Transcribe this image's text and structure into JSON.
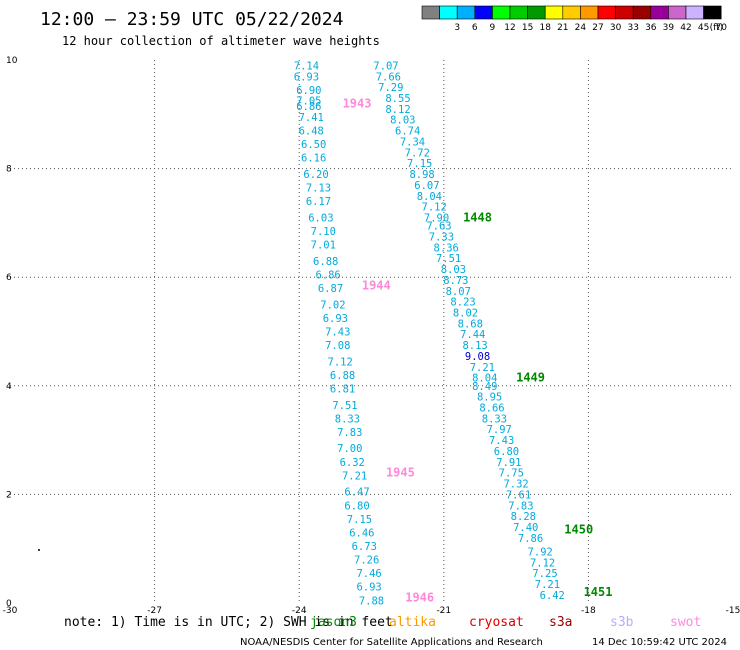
{
  "header": {
    "title": "12:00 – 23:59 UTC 05/22/2024",
    "subtitle": "12 hour collection of altimeter wave heights"
  },
  "legend": {
    "unit": "(ft)",
    "bins": [
      {
        "label": "",
        "color": "#808080"
      },
      {
        "label": "3",
        "color": "#00ffff"
      },
      {
        "label": "6",
        "color": "#00b0ff"
      },
      {
        "label": "9",
        "color": "#0000ff"
      },
      {
        "label": "12",
        "color": "#00ff00"
      },
      {
        "label": "15",
        "color": "#00cc00"
      },
      {
        "label": "18",
        "color": "#009900"
      },
      {
        "label": "21",
        "color": "#ffff00"
      },
      {
        "label": "24",
        "color": "#ffcc00"
      },
      {
        "label": "27",
        "color": "#ff9900"
      },
      {
        "label": "30",
        "color": "#ff0000"
      },
      {
        "label": "33",
        "color": "#cc0000"
      },
      {
        "label": "36",
        "color": "#990000"
      },
      {
        "label": "39",
        "color": "#990099"
      },
      {
        "label": "42",
        "color": "#cc66cc"
      },
      {
        "label": "45",
        "color": "#ccb3ff"
      },
      {
        "label": "70",
        "color": "#000000"
      }
    ]
  },
  "footer": {
    "note": "note:  1) Time is in UTC; 2) SWH is in feet",
    "credit": "NOAA/NESDIS Center for Satellite Applications and Research",
    "timestamp": "14 Dec 10:59:42 UTC 2024",
    "satellites": [
      {
        "name": "jason3",
        "color": "#008800"
      },
      {
        "name": "altika",
        "color": "#ff9900"
      },
      {
        "name": "cryosat",
        "color": "#dd0000"
      },
      {
        "name": "s3a",
        "color": "#990000"
      },
      {
        "name": "s3b",
        "color": "#bbaaff"
      },
      {
        "name": "swot",
        "color": "#ff88dd"
      }
    ]
  },
  "chart_data": {
    "type": "scatter",
    "xlim": [
      -30,
      -15
    ],
    "ylim": [
      0,
      10
    ],
    "xticks": [
      -30,
      -27,
      -24,
      -21,
      -18,
      -15
    ],
    "yticks": [
      0,
      2,
      4,
      6,
      8,
      10
    ],
    "grid": true,
    "units": "ft",
    "value_color": "#00aadd",
    "highlight_color": "#0000cc",
    "series": [
      {
        "name": "jason3",
        "color": "#008800",
        "time_labels": [
          {
            "label": "1448",
            "x": -20.6,
            "y": 7.1
          },
          {
            "label": "1449",
            "x": -19.5,
            "y": 4.15
          },
          {
            "label": "1450",
            "x": -18.5,
            "y": 1.35
          },
          {
            "label": "1451",
            "x": -18.1,
            "y": 0.2
          }
        ],
        "points": [
          {
            "x": -22.2,
            "y": 9.9,
            "v": "7.07"
          },
          {
            "x": -22.15,
            "y": 9.7,
            "v": "7.66"
          },
          {
            "x": -22.1,
            "y": 9.5,
            "v": "7.29"
          },
          {
            "x": -21.95,
            "y": 9.3,
            "v": "8.55"
          },
          {
            "x": -21.95,
            "y": 9.1,
            "v": "8.12"
          },
          {
            "x": -21.85,
            "y": 8.9,
            "v": "8.03"
          },
          {
            "x": -21.75,
            "y": 8.7,
            "v": "6.74"
          },
          {
            "x": -21.65,
            "y": 8.5,
            "v": "7.34"
          },
          {
            "x": -21.55,
            "y": 8.3,
            "v": "7.72"
          },
          {
            "x": -21.5,
            "y": 8.1,
            "v": "7.15"
          },
          {
            "x": -21.45,
            "y": 7.9,
            "v": "8.98"
          },
          {
            "x": -21.35,
            "y": 7.7,
            "v": "6.07"
          },
          {
            "x": -21.3,
            "y": 7.5,
            "v": "8.04"
          },
          {
            "x": -21.2,
            "y": 7.3,
            "v": "7.12"
          },
          {
            "x": -21.15,
            "y": 7.1,
            "v": "7.90"
          },
          {
            "x": -21.1,
            "y": 6.95,
            "v": "7.63"
          },
          {
            "x": -21.05,
            "y": 6.75,
            "v": "7.33"
          },
          {
            "x": -20.95,
            "y": 6.55,
            "v": "8.36"
          },
          {
            "x": -20.9,
            "y": 6.35,
            "v": "7.51"
          },
          {
            "x": -20.8,
            "y": 6.15,
            "v": "8.03"
          },
          {
            "x": -20.75,
            "y": 5.95,
            "v": "8.73"
          },
          {
            "x": -20.7,
            "y": 5.75,
            "v": "8.07"
          },
          {
            "x": -20.6,
            "y": 5.55,
            "v": "8.23"
          },
          {
            "x": -20.55,
            "y": 5.35,
            "v": "8.02"
          },
          {
            "x": -20.45,
            "y": 5.15,
            "v": "8.68"
          },
          {
            "x": -20.4,
            "y": 4.95,
            "v": "7.44"
          },
          {
            "x": -20.35,
            "y": 4.75,
            "v": "8.13"
          },
          {
            "x": -20.3,
            "y": 4.55,
            "v": "9.08",
            "highlight": true
          },
          {
            "x": -20.2,
            "y": 4.35,
            "v": "7.21"
          },
          {
            "x": -20.15,
            "y": 4.15,
            "v": "8.04"
          },
          {
            "x": -20.15,
            "y": 4.0,
            "v": "8.49"
          },
          {
            "x": -20.05,
            "y": 3.8,
            "v": "8.95"
          },
          {
            "x": -20.0,
            "y": 3.6,
            "v": "8.66"
          },
          {
            "x": -19.95,
            "y": 3.4,
            "v": "8.33"
          },
          {
            "x": -19.85,
            "y": 3.2,
            "v": "7.97"
          },
          {
            "x": -19.8,
            "y": 3.0,
            "v": "7.43"
          },
          {
            "x": -19.7,
            "y": 2.8,
            "v": "6.80"
          },
          {
            "x": -19.65,
            "y": 2.6,
            "v": "7.91"
          },
          {
            "x": -19.6,
            "y": 2.4,
            "v": "7.75"
          },
          {
            "x": -19.5,
            "y": 2.2,
            "v": "7.32"
          },
          {
            "x": -19.45,
            "y": 2.0,
            "v": "7.61"
          },
          {
            "x": -19.4,
            "y": 1.8,
            "v": "7.83"
          },
          {
            "x": -19.35,
            "y": 1.6,
            "v": "8.28"
          },
          {
            "x": -19.3,
            "y": 1.4,
            "v": "7.40"
          },
          {
            "x": -19.2,
            "y": 1.2,
            "v": "7.86"
          },
          {
            "x": -19.0,
            "y": 0.95,
            "v": "7.92"
          },
          {
            "x": -18.95,
            "y": 0.75,
            "v": "7.12"
          },
          {
            "x": -18.9,
            "y": 0.55,
            "v": "7.25"
          },
          {
            "x": -18.85,
            "y": 0.35,
            "v": "7.21"
          },
          {
            "x": -18.75,
            "y": 0.15,
            "v": "6.42"
          }
        ]
      },
      {
        "name": "swot",
        "color": "#ff88dd",
        "time_labels": [
          {
            "label": "1943",
            "x": -23.1,
            "y": 9.2
          },
          {
            "label": "1944",
            "x": -22.7,
            "y": 5.85
          },
          {
            "label": "1945",
            "x": -22.2,
            "y": 2.4
          },
          {
            "label": "1946",
            "x": -21.8,
            "y": 0.1
          }
        ],
        "points": [
          {
            "x": -23.85,
            "y": 9.9,
            "v": "7.14"
          },
          {
            "x": -23.85,
            "y": 9.7,
            "v": "6.93"
          },
          {
            "x": -23.8,
            "y": 9.45,
            "v": "6.90"
          },
          {
            "x": -23.8,
            "y": 9.25,
            "v": "7.05"
          },
          {
            "x": -23.8,
            "y": 9.15,
            "v": "6.86"
          },
          {
            "x": -23.75,
            "y": 8.95,
            "v": "7.41"
          },
          {
            "x": -23.75,
            "y": 8.7,
            "v": "6.48"
          },
          {
            "x": -23.7,
            "y": 8.45,
            "v": "6.50"
          },
          {
            "x": -23.7,
            "y": 8.2,
            "v": "6.16"
          },
          {
            "x": -23.65,
            "y": 7.9,
            "v": "6.20"
          },
          {
            "x": -23.6,
            "y": 7.65,
            "v": "7.13"
          },
          {
            "x": -23.6,
            "y": 7.4,
            "v": "6.17"
          },
          {
            "x": -23.55,
            "y": 7.1,
            "v": "6.03"
          },
          {
            "x": -23.5,
            "y": 6.85,
            "v": "7.10"
          },
          {
            "x": -23.5,
            "y": 6.6,
            "v": "7.01"
          },
          {
            "x": -23.45,
            "y": 6.3,
            "v": "6.88"
          },
          {
            "x": -23.4,
            "y": 6.05,
            "v": "6.86"
          },
          {
            "x": -23.35,
            "y": 5.8,
            "v": "6.87"
          },
          {
            "x": -23.3,
            "y": 5.5,
            "v": "7.02"
          },
          {
            "x": -23.25,
            "y": 5.25,
            "v": "6.93"
          },
          {
            "x": -23.2,
            "y": 5.0,
            "v": "7.43"
          },
          {
            "x": -23.2,
            "y": 4.75,
            "v": "7.08"
          },
          {
            "x": -23.15,
            "y": 4.45,
            "v": "7.12"
          },
          {
            "x": -23.1,
            "y": 4.2,
            "v": "6.88"
          },
          {
            "x": -23.1,
            "y": 3.95,
            "v": "6.81"
          },
          {
            "x": -23.05,
            "y": 3.65,
            "v": "7.51"
          },
          {
            "x": -23.0,
            "y": 3.4,
            "v": "8.33"
          },
          {
            "x": -22.95,
            "y": 3.15,
            "v": "7.83"
          },
          {
            "x": -22.95,
            "y": 2.85,
            "v": "7.00"
          },
          {
            "x": -22.9,
            "y": 2.6,
            "v": "6.32"
          },
          {
            "x": -22.85,
            "y": 2.35,
            "v": "7.21"
          },
          {
            "x": -22.8,
            "y": 2.05,
            "v": "6.47"
          },
          {
            "x": -22.8,
            "y": 1.8,
            "v": "6.80"
          },
          {
            "x": -22.75,
            "y": 1.55,
            "v": "7.15"
          },
          {
            "x": -22.7,
            "y": 1.3,
            "v": "6.46"
          },
          {
            "x": -22.65,
            "y": 1.05,
            "v": "6.73"
          },
          {
            "x": -22.6,
            "y": 0.8,
            "v": "7.26"
          },
          {
            "x": -22.55,
            "y": 0.55,
            "v": "7.46"
          },
          {
            "x": -22.55,
            "y": 0.3,
            "v": "6.93"
          },
          {
            "x": -22.5,
            "y": 0.05,
            "v": "7.88"
          }
        ]
      }
    ]
  }
}
